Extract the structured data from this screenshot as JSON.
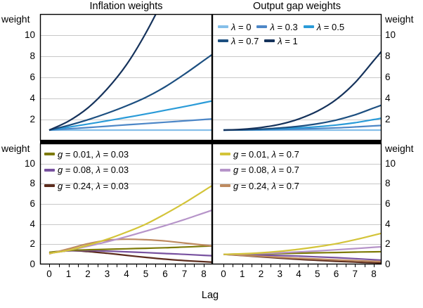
{
  "axes": {
    "weight_label": "weight",
    "lag_label": "Lag",
    "x_tick_labels": [
      "0",
      "1",
      "2",
      "3",
      "4",
      "5",
      "6",
      "7",
      "8"
    ],
    "y_tick_labels_top": [
      "10",
      "8",
      "6",
      "4",
      "2"
    ],
    "y_tick_values_top": [
      10,
      8,
      6,
      4,
      2
    ],
    "y_tick_labels_bottom": [
      "10",
      "8",
      "6",
      "4",
      "2",
      "0"
    ],
    "y_tick_values_bottom": [
      10,
      8,
      6,
      4,
      2,
      0
    ],
    "grid_color": "#c8c8c8",
    "axis_color": "#000000"
  },
  "chart_data": [
    {
      "type": "line",
      "title": "Inflation weights",
      "xlabel": "Lag",
      "ylabel": "weight",
      "x": [
        0,
        1,
        2,
        3,
        4,
        5,
        6,
        7,
        8
      ],
      "ylim": [
        0,
        12
      ],
      "grid": true,
      "series": [
        {
          "name": "λ = 0",
          "color": "#85bfe9",
          "values": [
            1,
            1,
            1,
            1,
            1,
            1,
            1,
            1,
            1
          ]
        },
        {
          "name": "λ = 0.3",
          "color": "#4d87c7",
          "values": [
            1,
            1.12,
            1.24,
            1.37,
            1.5,
            1.62,
            1.75,
            1.87,
            2
          ]
        },
        {
          "name": "λ = 0.5",
          "color": "#2a9bd8",
          "values": [
            1,
            1.28,
            1.57,
            1.88,
            2.2,
            2.53,
            2.88,
            3.23,
            3.6
          ]
        },
        {
          "name": "λ = 0.7",
          "color": "#1c4f80",
          "values": [
            1,
            1.45,
            1.98,
            2.6,
            3.3,
            4.1,
            5.1,
            6.3,
            7.6
          ]
        },
        {
          "name": "λ = 1",
          "color": "#15325b",
          "values": [
            1,
            1.85,
            3.1,
            4.9,
            7.2,
            10.2,
            13.8,
            18,
            23
          ]
        }
      ]
    },
    {
      "type": "line",
      "title": "Output gap weights",
      "xlabel": "Lag",
      "ylabel": "weight",
      "x": [
        0,
        1,
        2,
        3,
        4,
        5,
        6,
        7,
        8
      ],
      "ylim": [
        0,
        12
      ],
      "grid": true,
      "legend_rows": [
        [
          0,
          1,
          2
        ],
        [
          3,
          4
        ]
      ],
      "series": [
        {
          "name": "λ = 0",
          "color": "#85bfe9",
          "values": [
            1,
            1,
            1,
            1,
            1,
            1,
            1,
            1,
            1
          ]
        },
        {
          "name": "λ = 0.3",
          "color": "#4d87c7",
          "values": [
            1,
            1.01,
            1.03,
            1.06,
            1.1,
            1.15,
            1.21,
            1.3,
            1.4
          ]
        },
        {
          "name": "λ = 0.5",
          "color": "#2a9bd8",
          "values": [
            1,
            1.02,
            1.06,
            1.12,
            1.21,
            1.32,
            1.48,
            1.7,
            2
          ]
        },
        {
          "name": "λ = 0.7",
          "color": "#1c4f80",
          "values": [
            1,
            1.03,
            1.09,
            1.2,
            1.36,
            1.6,
            1.95,
            2.45,
            3.1
          ]
        },
        {
          "name": "λ = 1",
          "color": "#15325b",
          "values": [
            1,
            1.08,
            1.25,
            1.55,
            2.05,
            2.8,
            3.9,
            5.5,
            7.6
          ]
        }
      ]
    },
    {
      "type": "line",
      "title": "",
      "xlabel": "Lag",
      "ylabel": "weight",
      "x": [
        0,
        1,
        2,
        3,
        4,
        5,
        6,
        7,
        8
      ],
      "ylim": [
        0,
        12
      ],
      "grid": true,
      "legend_rows": [
        [
          2
        ],
        [
          1
        ],
        [
          0
        ]
      ],
      "series": [
        {
          "name": "g = 0.24, λ = 0.03",
          "color": "#5c2c1d",
          "values": [
            1.1,
            1.35,
            1.28,
            1.1,
            0.9,
            0.7,
            0.52,
            0.38,
            0.27
          ]
        },
        {
          "name": "g = 0.08, λ = 0.03",
          "color": "#7852a0",
          "values": [
            1.15,
            1.35,
            1.37,
            1.32,
            1.25,
            1.17,
            1.08,
            1,
            0.9
          ]
        },
        {
          "name": "g = 0.01, λ = 0.03",
          "color": "#7d7a07",
          "values": [
            1.2,
            1.38,
            1.45,
            1.5,
            1.55,
            1.6,
            1.65,
            1.72,
            1.8
          ]
        },
        {
          "name": "g = 0.24, λ = 0.7",
          "color": "#be8a60",
          "values": [
            1.05,
            1.55,
            2.05,
            2.4,
            2.5,
            2.45,
            2.32,
            2.12,
            1.92
          ]
        },
        {
          "name": "g = 0.08, λ = 0.7",
          "color": "#b694c9",
          "values": [
            1.1,
            1.4,
            1.8,
            2.25,
            2.75,
            3.3,
            3.85,
            4.45,
            5.1
          ]
        },
        {
          "name": "g = 0.01, λ = 0.7",
          "color": "#d3c439",
          "values": [
            1.1,
            1.4,
            1.9,
            2.5,
            3.2,
            4,
            5,
            6.1,
            7.3
          ]
        }
      ]
    },
    {
      "type": "line",
      "title": "",
      "xlabel": "Lag",
      "ylabel": "weight",
      "x": [
        0,
        1,
        2,
        3,
        4,
        5,
        6,
        7,
        8
      ],
      "ylim": [
        0,
        12
      ],
      "grid": true,
      "legend_rows": [
        [
          5
        ],
        [
          4
        ],
        [
          3
        ]
      ],
      "series": [
        {
          "name": "g = 0.24, λ = 0.03",
          "color": "#5c2c1d",
          "values": [
            1,
            0.88,
            0.75,
            0.62,
            0.5,
            0.4,
            0.31,
            0.23,
            0.16
          ]
        },
        {
          "name": "g = 0.08, λ = 0.03",
          "color": "#7852a0",
          "values": [
            1,
            0.97,
            0.93,
            0.88,
            0.82,
            0.75,
            0.67,
            0.57,
            0.47
          ]
        },
        {
          "name": "g = 0.01, λ = 0.03",
          "color": "#7d7a07",
          "values": [
            1,
            1.02,
            1.05,
            1.08,
            1.11,
            1.15,
            1.18,
            1.22,
            1.25
          ]
        },
        {
          "name": "g = 0.24, λ = 0.7",
          "color": "#be8a60",
          "values": [
            1,
            0.9,
            0.8,
            0.7,
            0.61,
            0.53,
            0.45,
            0.38,
            0.31
          ]
        },
        {
          "name": "g = 0.08, λ = 0.7",
          "color": "#b694c9",
          "values": [
            1,
            1.03,
            1.08,
            1.15,
            1.24,
            1.34,
            1.45,
            1.57,
            1.7
          ]
        },
        {
          "name": "g = 0.01, λ = 0.7",
          "color": "#d3c439",
          "values": [
            1,
            1.05,
            1.15,
            1.3,
            1.5,
            1.75,
            2.05,
            2.45,
            2.9
          ]
        }
      ]
    }
  ]
}
